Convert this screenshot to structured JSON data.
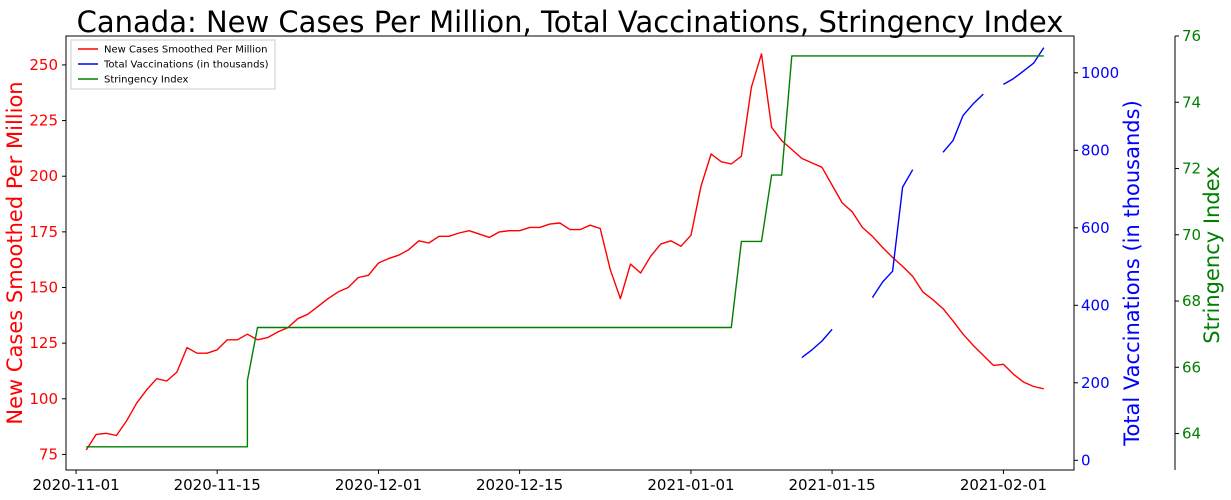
{
  "chart_data": {
    "type": "line",
    "title": "Canada: New Cases Per Million, Total Vaccinations, Stringency Index",
    "x_start": "2020-11-01",
    "x_tick_labels": [
      "2020-11-01",
      "2020-11-15",
      "2020-12-01",
      "2020-12-15",
      "2021-01-01",
      "2021-01-15",
      "2021-02-01"
    ],
    "x_tick_days": [
      0,
      14,
      30,
      44,
      61,
      75,
      92
    ],
    "xlim_days": [
      -1,
      99
    ],
    "axes": {
      "left": {
        "label": "New Cases Smoothed Per Million",
        "color": "#ff0000",
        "ylim": [
          68,
          263
        ],
        "ticks": [
          75,
          100,
          125,
          150,
          175,
          200,
          225,
          250
        ]
      },
      "right1": {
        "label": "Total Vaccinations (in thousands)",
        "color": "#0000ff",
        "ylim": [
          -25,
          1095
        ],
        "ticks": [
          0,
          200,
          400,
          600,
          800,
          1000
        ]
      },
      "right2": {
        "label": "Stringency Index",
        "color": "#008000",
        "ylim": [
          62.9,
          76.0
        ],
        "ticks": [
          64,
          66,
          68,
          70,
          72,
          74,
          76
        ]
      }
    },
    "legend_position": "top-left",
    "series": [
      {
        "name": "New Cases Smoothed Per Million",
        "axis": "left",
        "color": "#ff0000",
        "x": [
          1,
          2,
          3,
          4,
          5,
          6,
          7,
          8,
          9,
          10,
          11,
          12,
          13,
          14,
          15,
          16,
          17,
          18,
          19,
          20,
          21,
          22,
          23,
          24,
          25,
          26,
          27,
          28,
          29,
          30,
          31,
          32,
          33,
          34,
          35,
          36,
          37,
          38,
          39,
          40,
          41,
          42,
          43,
          44,
          45,
          46,
          47,
          48,
          49,
          50,
          51,
          52,
          53,
          54,
          55,
          56,
          57,
          58,
          59,
          60,
          61,
          62,
          63,
          64,
          65,
          66,
          67,
          68,
          69,
          70,
          71,
          72,
          73,
          74,
          75,
          76,
          77,
          78,
          79,
          80,
          81,
          82,
          83,
          84,
          85,
          86,
          87,
          88,
          89,
          90,
          91,
          92,
          93,
          94,
          95,
          96
        ],
        "y": [
          77,
          84,
          84.5,
          83.5,
          90,
          98,
          104,
          109,
          108,
          112,
          123,
          120.5,
          120.5,
          122,
          126.5,
          126.5,
          129,
          126.5,
          127.5,
          130,
          132,
          136,
          138,
          141.5,
          145,
          148,
          150,
          154.5,
          155.5,
          161,
          163,
          164.5,
          167,
          171,
          170,
          173,
          173,
          174.5,
          175.5,
          174,
          172.5,
          175,
          175.5,
          175.5,
          177,
          177,
          178.5,
          179,
          176,
          176,
          178,
          176.5,
          158,
          145,
          160.5,
          156.5,
          164,
          169.5,
          171,
          168.5,
          173.5,
          195.5,
          210,
          206.5,
          205.5,
          209,
          240,
          255,
          222,
          216,
          212,
          208,
          206,
          204,
          196,
          188,
          184,
          177,
          173,
          168,
          163.5,
          159.5,
          155,
          148,
          144.5,
          140.5,
          135,
          129,
          124,
          119.5,
          115,
          115.5,
          111,
          107.5,
          105.5,
          104.5
        ]
      },
      {
        "name": "Total Vaccinations (in thousands)",
        "axis": "right1",
        "color": "#0000ff",
        "segments": [
          {
            "x": [
              72,
              73,
              74,
              75
            ],
            "y": [
              265,
              285,
              308,
              338
            ]
          },
          {
            "x": [
              79,
              80,
              81,
              82,
              83
            ],
            "y": [
              420,
              460,
              488,
              705,
              750
            ]
          },
          {
            "x": [
              86,
              87,
              88,
              89,
              90
            ],
            "y": [
              795,
              825,
              890,
              920,
              945
            ]
          },
          {
            "x": [
              92,
              93,
              94,
              95,
              96
            ],
            "y": [
              970,
              985,
              1005,
              1025,
              1065
            ]
          }
        ]
      },
      {
        "name": "Stringency Index",
        "axis": "right2",
        "color": "#008000",
        "x": [
          1,
          17,
          17,
          18,
          65,
          66,
          68,
          69,
          70,
          71,
          72,
          96
        ],
        "y": [
          63.6,
          63.6,
          65.6,
          67.2,
          67.2,
          69.8,
          69.8,
          71.8,
          71.8,
          75.4,
          75.4,
          75.4
        ]
      }
    ]
  }
}
